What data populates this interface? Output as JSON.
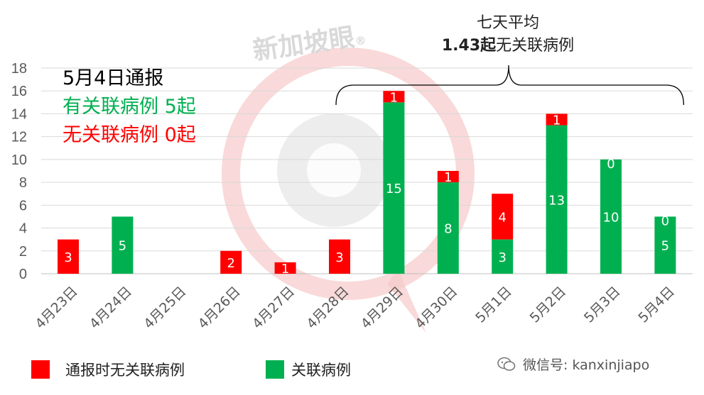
{
  "watermark": {
    "text": "新加坡眼",
    "symbol": "®"
  },
  "headline": {
    "date_line": "5月4日通报",
    "linked_line": "有关联病例 5起",
    "unlinked_line": "无关联病例 0起"
  },
  "annotation": {
    "line1": "七天平均",
    "line2_bold": "1.43起",
    "line2_rest": "无关联病例"
  },
  "legend": [
    {
      "label": "通报时无关联病例",
      "color": "#ff0000"
    },
    {
      "label": "关联病例",
      "color": "#00b050"
    }
  ],
  "wechat": {
    "text": "微信号: kanxinjiapo",
    "icon": "wechat-icon"
  },
  "colors": {
    "unlinked": "#ff0000",
    "linked": "#00b050",
    "axis_text": "#595959",
    "grid": "#d9d9d9"
  },
  "chart_data": {
    "type": "bar",
    "stacked": true,
    "categories": [
      "4月23日",
      "4月24日",
      "4月25日",
      "4月26日",
      "4月27日",
      "4月28日",
      "4月29日",
      "4月30日",
      "5月1日",
      "5月2日",
      "5月3日",
      "5月4日"
    ],
    "series": [
      {
        "name": "关联病例",
        "color": "#00b050",
        "values": [
          0,
          5,
          0,
          0,
          0,
          0,
          15,
          8,
          3,
          13,
          10,
          5
        ]
      },
      {
        "name": "通报时无关联病例",
        "color": "#ff0000",
        "values": [
          3,
          0,
          0,
          2,
          1,
          3,
          1,
          1,
          4,
          1,
          0,
          0
        ]
      }
    ],
    "data_labels": {
      "linked": [
        "",
        "5",
        "",
        "",
        "",
        "",
        "15",
        "8",
        "3",
        "13",
        "10",
        "5"
      ],
      "unlinked": [
        "3",
        "",
        "",
        "2",
        "1",
        "3",
        "1",
        "1",
        "4",
        "1",
        "0",
        "0"
      ]
    },
    "ylim": [
      0,
      18
    ],
    "yticks": [
      0,
      2,
      4,
      6,
      8,
      10,
      12,
      14,
      16,
      18
    ],
    "grid": true,
    "legend_position": "bottom-left",
    "bracket_span": [
      "4月28日",
      "5月4日"
    ]
  }
}
